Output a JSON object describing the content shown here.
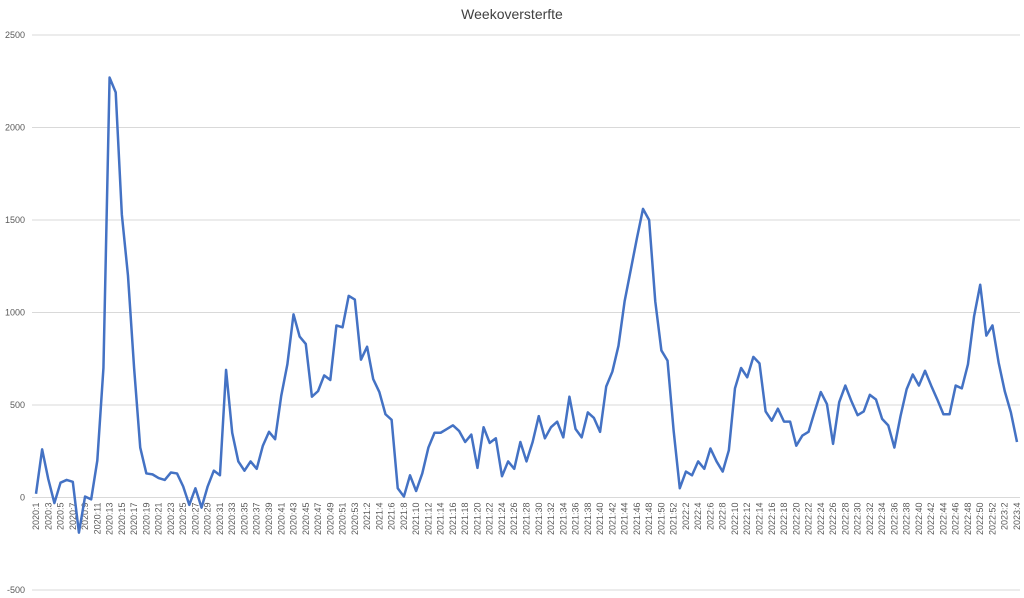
{
  "chart_data": {
    "type": "line",
    "title": "Weekoversterfte",
    "categories": [
      "2020:1",
      null,
      "2020:3",
      null,
      "2020:5",
      null,
      "2020:7",
      null,
      "2020:9",
      null,
      "2020:11",
      null,
      "2020:13",
      null,
      "2020:15",
      null,
      "2020:17",
      null,
      "2020:19",
      null,
      "2020:21",
      null,
      "2020:23",
      null,
      "2020:25",
      null,
      "2020:27",
      null,
      "2020:29",
      null,
      "2020:31",
      null,
      "2020:33",
      null,
      "2020:35",
      null,
      "2020:37",
      null,
      "2020:39",
      null,
      "2020:41",
      null,
      "2020:43",
      null,
      "2020:45",
      null,
      "2020:47",
      null,
      "2020:49",
      null,
      "2020:51",
      null,
      "2020:53",
      null,
      "2021:2",
      null,
      "2021:4",
      null,
      "2021:6",
      null,
      "2021:8",
      null,
      "2021:10",
      null,
      "2021:12",
      null,
      "2021:14",
      null,
      "2021:16",
      null,
      "2021:18",
      null,
      "2021:20",
      null,
      "2021:22",
      null,
      "2021:24",
      null,
      "2021:26",
      null,
      "2021:28",
      null,
      "2021:30",
      null,
      "2021:32",
      null,
      "2021:34",
      null,
      "2021:36",
      null,
      "2021:38",
      null,
      "2021:40",
      null,
      "2021:42",
      null,
      "2021:44",
      null,
      "2021:46",
      null,
      "2021:48",
      null,
      "2021:50",
      null,
      "2021:52",
      null,
      "2022:2",
      null,
      "2022:4",
      null,
      "2022:6",
      null,
      "2022:8",
      null,
      "2022:10",
      null,
      "2022:12",
      null,
      "2022:14",
      null,
      "2022:16",
      null,
      "2022:18",
      null,
      "2022:20",
      null,
      "2022:22",
      null,
      "2022:24",
      null,
      "2022:26",
      null,
      "2022:28",
      null,
      "2022:30",
      null,
      "2022:32",
      null,
      "2022:34",
      null,
      "2022:36",
      null,
      "2022:38",
      null,
      "2022:40",
      null,
      "2022:42",
      null,
      "2022:44",
      null,
      "2022:46",
      null,
      "2022:48",
      null,
      "2022:50",
      null,
      "2022:52",
      null,
      "2023:2",
      null,
      "2023:4"
    ],
    "values": [
      20,
      260,
      100,
      -30,
      80,
      95,
      85,
      -190,
      5,
      -10,
      200,
      700,
      2270,
      2190,
      1530,
      1200,
      700,
      270,
      130,
      125,
      105,
      95,
      135,
      130,
      60,
      -40,
      50,
      -55,
      60,
      145,
      120,
      690,
      350,
      195,
      145,
      195,
      155,
      280,
      355,
      315,
      550,
      720,
      990,
      870,
      830,
      545,
      575,
      660,
      635,
      930,
      920,
      1090,
      1070,
      745,
      815,
      640,
      570,
      450,
      420,
      50,
      5,
      120,
      35,
      130,
      270,
      350,
      350,
      370,
      390,
      360,
      300,
      340,
      160,
      380,
      295,
      320,
      115,
      195,
      155,
      300,
      195,
      300,
      440,
      320,
      380,
      410,
      325,
      545,
      370,
      325,
      460,
      430,
      355,
      600,
      680,
      820,
      1060,
      1230,
      1400,
      1560,
      1500,
      1060,
      795,
      740,
      360,
      50,
      140,
      120,
      195,
      155,
      265,
      195,
      140,
      255,
      590,
      700,
      650,
      760,
      725,
      465,
      415,
      480,
      410,
      410,
      280,
      335,
      355,
      465,
      570,
      505,
      290,
      515,
      605,
      520,
      445,
      465,
      555,
      530,
      425,
      390,
      270,
      440,
      585,
      665,
      605,
      685,
      605,
      530,
      450,
      450,
      605,
      590,
      720,
      980,
      1150,
      875,
      930,
      730,
      575,
      460,
      300
    ],
    "color": "#4472c4",
    "ylim": [
      -500,
      2500
    ],
    "yticks": [
      -500,
      0,
      500,
      1000,
      1500,
      2000,
      2500
    ],
    "grid": true
  }
}
